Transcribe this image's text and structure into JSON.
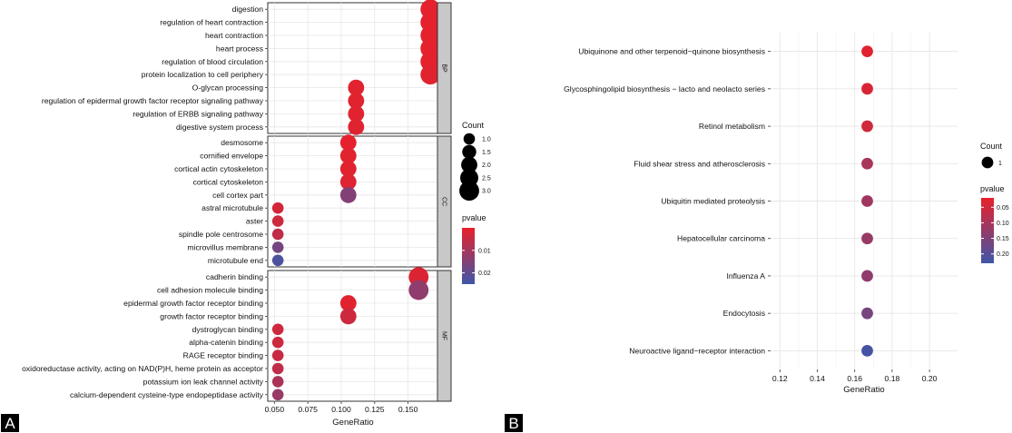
{
  "colors": {
    "pvalue_low": "#e8202a",
    "pvalue_high": "#3f56a8",
    "panel_background": "#ffffff",
    "grid": "#e6e6e6",
    "strip_fill": "#c8c8c8",
    "tag_fill": "#000000"
  },
  "chart_data": [
    {
      "panel": "A",
      "type": "scatter",
      "xlabel": "GeneRatio",
      "xlim": [
        0.045,
        0.172
      ],
      "xticks": [
        0.05,
        0.075,
        0.1,
        0.125,
        0.15
      ],
      "xtick_labels": [
        "0.050",
        "0.075",
        "0.100",
        "0.125",
        "0.150"
      ],
      "grid": true,
      "legend_position": "right",
      "facets": [
        {
          "strip": "BP",
          "terms": [
            {
              "term": "digestion",
              "x": 0.1667,
              "count": 3,
              "pvalue": 0.0005
            },
            {
              "term": "regulation of heart contraction",
              "x": 0.1667,
              "count": 3,
              "pvalue": 0.0005
            },
            {
              "term": "heart contraction",
              "x": 0.1667,
              "count": 3,
              "pvalue": 0.0005
            },
            {
              "term": "heart process",
              "x": 0.1667,
              "count": 3,
              "pvalue": 0.0005
            },
            {
              "term": "regulation of blood circulation",
              "x": 0.1667,
              "count": 3,
              "pvalue": 0.0006
            },
            {
              "term": "protein localization to cell periphery",
              "x": 0.1667,
              "count": 3,
              "pvalue": 0.001
            },
            {
              "term": "O-glycan processing",
              "x": 0.1111,
              "count": 2,
              "pvalue": 0.001
            },
            {
              "term": "regulation of epidermal growth factor receptor signaling pathway",
              "x": 0.1111,
              "count": 2,
              "pvalue": 0.001
            },
            {
              "term": "regulation of ERBB signaling pathway",
              "x": 0.1111,
              "count": 2,
              "pvalue": 0.001
            },
            {
              "term": "digestive system process",
              "x": 0.1111,
              "count": 2,
              "pvalue": 0.0012
            }
          ]
        },
        {
          "strip": "CC",
          "terms": [
            {
              "term": "desmosome",
              "x": 0.1053,
              "count": 2,
              "pvalue": 0.0005
            },
            {
              "term": "cornified envelope",
              "x": 0.1053,
              "count": 2,
              "pvalue": 0.001
            },
            {
              "term": "cortical actin cytoskeleton",
              "x": 0.1053,
              "count": 2,
              "pvalue": 0.001
            },
            {
              "term": "cortical cytoskeleton",
              "x": 0.1053,
              "count": 2,
              "pvalue": 0.0015
            },
            {
              "term": "cell cortex part",
              "x": 0.1053,
              "count": 2,
              "pvalue": 0.015
            },
            {
              "term": "astral microtubule",
              "x": 0.0526,
              "count": 1,
              "pvalue": 0.003
            },
            {
              "term": "aster",
              "x": 0.0526,
              "count": 1,
              "pvalue": 0.004
            },
            {
              "term": "spindle pole centrosome",
              "x": 0.0526,
              "count": 1,
              "pvalue": 0.006
            },
            {
              "term": "microvillus membrane",
              "x": 0.0526,
              "count": 1,
              "pvalue": 0.017
            },
            {
              "term": "microtubule end",
              "x": 0.0526,
              "count": 1,
              "pvalue": 0.023
            }
          ]
        },
        {
          "strip": "MF",
          "terms": [
            {
              "term": "cadherin binding",
              "x": 0.1579,
              "count": 3,
              "pvalue": 0.002
            },
            {
              "term": "cell adhesion molecule binding",
              "x": 0.1579,
              "count": 3,
              "pvalue": 0.013
            },
            {
              "term": "epidermal growth factor receptor binding",
              "x": 0.1053,
              "count": 2,
              "pvalue": 0.001
            },
            {
              "term": "growth factor receptor binding",
              "x": 0.1053,
              "count": 2,
              "pvalue": 0.004
            },
            {
              "term": "dystroglycan binding",
              "x": 0.0526,
              "count": 1,
              "pvalue": 0.004
            },
            {
              "term": "alpha-catenin binding",
              "x": 0.0526,
              "count": 1,
              "pvalue": 0.004
            },
            {
              "term": "RAGE receptor binding",
              "x": 0.0526,
              "count": 1,
              "pvalue": 0.005
            },
            {
              "term": "oxidoreductase activity, acting on NAD(P)H, heme protein as acceptor",
              "x": 0.0526,
              "count": 1,
              "pvalue": 0.006
            },
            {
              "term": "potassium ion leak channel activity",
              "x": 0.0526,
              "count": 1,
              "pvalue": 0.009
            },
            {
              "term": "calcium-dependent cysteine-type endopeptidase activity",
              "x": 0.0526,
              "count": 1,
              "pvalue": 0.012
            }
          ]
        }
      ],
      "size_legend": {
        "title": "Count",
        "values": [
          1,
          1.5,
          2,
          2.5,
          3
        ],
        "labels": [
          "1.0",
          "1.5",
          "2.0",
          "2.5",
          "3.0"
        ]
      },
      "color_legend": {
        "title": "pvalue",
        "range": [
          0,
          0.025
        ],
        "ticks": [
          0.01,
          0.02
        ],
        "labels": [
          "0.01",
          "0.02"
        ]
      }
    },
    {
      "panel": "B",
      "type": "scatter",
      "xlabel": "GeneRatio",
      "xlim": [
        0.115,
        0.215
      ],
      "xticks": [
        0.12,
        0.14,
        0.16,
        0.18,
        0.2
      ],
      "xtick_labels": [
        "0.12",
        "0.14",
        "0.16",
        "0.18",
        "0.20"
      ],
      "grid": true,
      "legend_position": "right",
      "terms": [
        {
          "term": "Ubiquinone and other terpenoid−quinone biosynthesis",
          "x": 0.1667,
          "count": 1,
          "pvalue": 0.03
        },
        {
          "term": "Glycosphingolipid biosynthesis − lacto and neolacto series",
          "x": 0.1667,
          "count": 1,
          "pvalue": 0.04
        },
        {
          "term": "Retinol metabolism",
          "x": 0.1667,
          "count": 1,
          "pvalue": 0.05
        },
        {
          "term": "Fluid shear stress and atherosclerosis",
          "x": 0.1667,
          "count": 1,
          "pvalue": 0.1
        },
        {
          "term": "Ubiquitin mediated proteolysis",
          "x": 0.1667,
          "count": 1,
          "pvalue": 0.11
        },
        {
          "term": "Hepatocellular carcinoma",
          "x": 0.1667,
          "count": 1,
          "pvalue": 0.12
        },
        {
          "term": "Influenza A",
          "x": 0.1667,
          "count": 1,
          "pvalue": 0.13
        },
        {
          "term": "Endocytosis",
          "x": 0.1667,
          "count": 1,
          "pvalue": 0.16
        },
        {
          "term": "Neuroactive ligand−receptor interaction",
          "x": 0.1667,
          "count": 1,
          "pvalue": 0.22
        }
      ],
      "size_legend": {
        "title": "Count",
        "values": [
          1
        ],
        "labels": [
          "1"
        ]
      },
      "color_legend": {
        "title": "pvalue",
        "range": [
          0.02,
          0.23
        ],
        "ticks": [
          0.05,
          0.1,
          0.15,
          0.2
        ],
        "labels": [
          "0.05",
          "0.10",
          "0.15",
          "0.20"
        ]
      }
    }
  ]
}
